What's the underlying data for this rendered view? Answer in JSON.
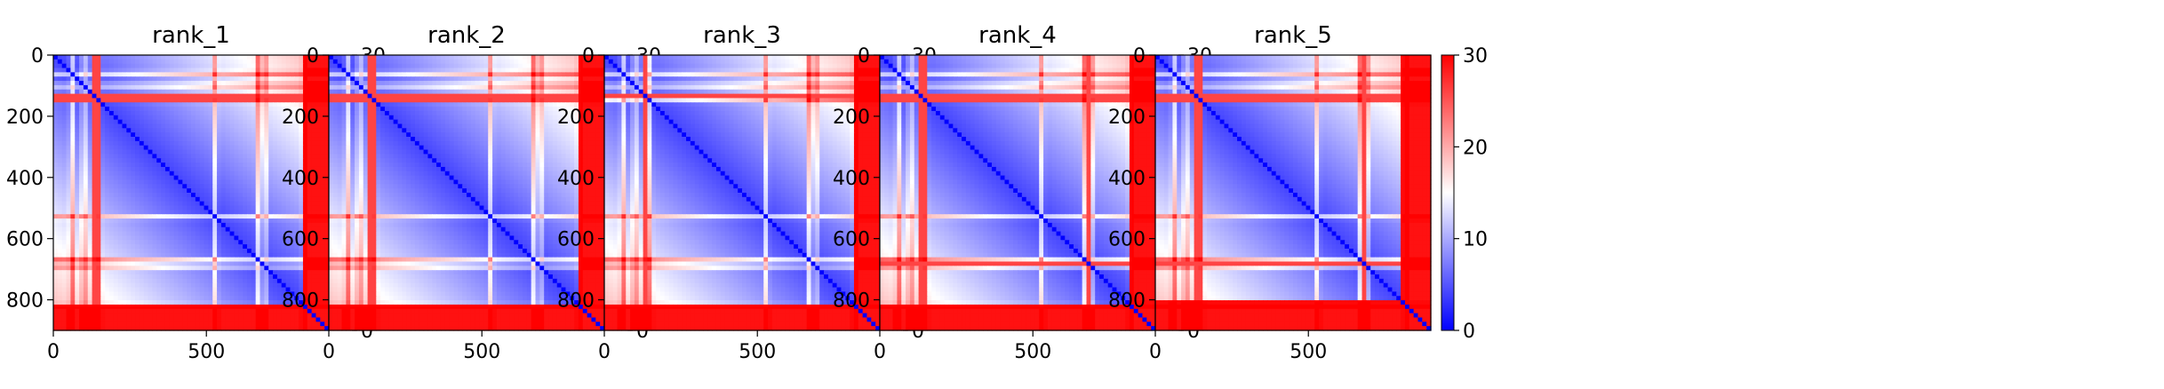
{
  "chart_data": [
    {
      "type": "heatmap",
      "title": "rank_1",
      "size": 900,
      "xticks": [
        0,
        500
      ],
      "yticks": [
        0,
        200,
        400,
        600,
        800
      ],
      "colorbar": {
        "cmap": "bwr",
        "vmin": 0,
        "vmax": 30,
        "ticks": [
          0,
          10,
          20,
          30
        ]
      },
      "bands": [
        60,
        100,
        130,
        150,
        530,
        670,
        690,
        820
      ],
      "strong_bands": [
        130,
        150
      ],
      "edge_start": 820
    },
    {
      "type": "heatmap",
      "title": "rank_2",
      "size": 900,
      "xticks": [
        0,
        500
      ],
      "yticks": [
        0,
        200,
        400,
        600,
        800
      ],
      "colorbar": {
        "cmap": "bwr",
        "vmin": 0,
        "vmax": 30,
        "ticks": [
          0,
          10,
          20,
          30
        ]
      },
      "bands": [
        60,
        100,
        130,
        150,
        530,
        670,
        690,
        820
      ],
      "strong_bands": [
        130,
        150
      ],
      "edge_start": 820
    },
    {
      "type": "heatmap",
      "title": "rank_3",
      "size": 900,
      "xticks": [
        0,
        500
      ],
      "yticks": [
        0,
        200,
        400,
        600,
        800
      ],
      "colorbar": {
        "cmap": "bwr",
        "vmin": 0,
        "vmax": 30,
        "ticks": [
          0,
          10,
          20,
          30
        ]
      },
      "bands": [
        60,
        100,
        130,
        150,
        530,
        670,
        690,
        820
      ],
      "strong_bands": [
        130
      ],
      "edge_start": 820
    },
    {
      "type": "heatmap",
      "title": "rank_4",
      "size": 900,
      "xticks": [
        0,
        500
      ],
      "yticks": [
        0,
        200,
        400,
        600,
        800
      ],
      "colorbar": {
        "cmap": "bwr",
        "vmin": 0,
        "vmax": 30,
        "ticks": [
          0,
          10,
          20,
          30
        ]
      },
      "bands": [
        60,
        100,
        130,
        150,
        530,
        670,
        690,
        820
      ],
      "strong_bands": [
        130,
        150,
        680
      ],
      "edge_start": 820
    },
    {
      "type": "heatmap",
      "title": "rank_5",
      "size": 900,
      "xticks": [
        0,
        500
      ],
      "yticks": [
        0,
        200,
        400,
        600,
        800
      ],
      "colorbar": {
        "cmap": "bwr",
        "vmin": 0,
        "vmax": 30,
        "ticks": [
          0,
          10,
          20,
          30
        ]
      },
      "bands": [
        60,
        100,
        130,
        150,
        530,
        670,
        690,
        820
      ],
      "strong_bands": [
        130,
        150,
        680
      ],
      "edge_start": 800
    }
  ]
}
